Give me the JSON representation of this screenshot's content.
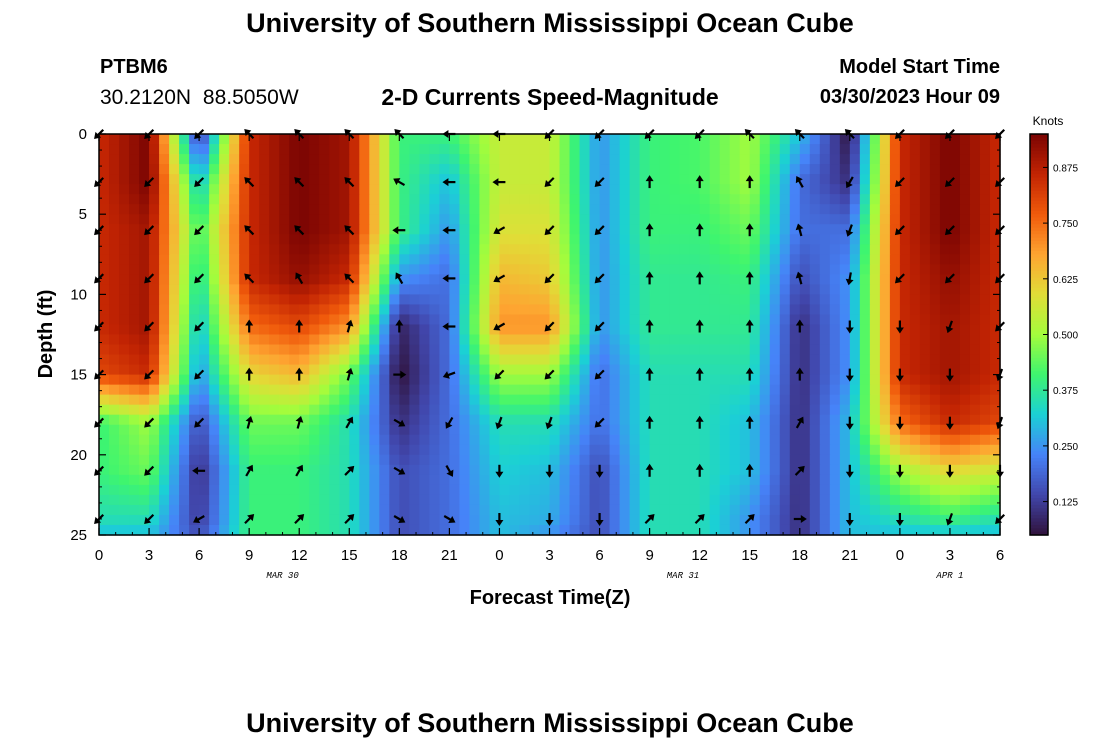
{
  "header": {
    "title": "University of Southern Mississippi Ocean Cube",
    "station_id": "PTBM6",
    "station_location": "30.2120N  88.5050W",
    "variable_title": "2-D Currents Speed-Magnitude",
    "model_start_label": "Model Start Time",
    "model_start_value": "03/30/2023 Hour 09",
    "footer_title": "University of Southern Mississippi Ocean Cube"
  },
  "chart_data": {
    "type": "heatmap",
    "title": "2-D Currents Speed-Magnitude",
    "xlabel": "Forecast Time(Z)",
    "ylabel": "Depth (ft)",
    "xlim": [
      0,
      54
    ],
    "ylim": [
      0,
      25
    ],
    "y_inverted": true,
    "x_ticks": [
      {
        "t": 0,
        "label": "0"
      },
      {
        "t": 3,
        "label": "3"
      },
      {
        "t": 6,
        "label": "6"
      },
      {
        "t": 9,
        "label": "9"
      },
      {
        "t": 12,
        "label": "12"
      },
      {
        "t": 15,
        "label": "15"
      },
      {
        "t": 18,
        "label": "18"
      },
      {
        "t": 21,
        "label": "21"
      },
      {
        "t": 24,
        "label": "0"
      },
      {
        "t": 27,
        "label": "3"
      },
      {
        "t": 30,
        "label": "6"
      },
      {
        "t": 33,
        "label": "9"
      },
      {
        "t": 36,
        "label": "12"
      },
      {
        "t": 39,
        "label": "15"
      },
      {
        "t": 42,
        "label": "18"
      },
      {
        "t": 45,
        "label": "21"
      },
      {
        "t": 48,
        "label": "0"
      },
      {
        "t": 51,
        "label": "3"
      },
      {
        "t": 54,
        "label": "6"
      }
    ],
    "y_ticks": [
      0,
      5,
      10,
      15,
      20,
      25
    ],
    "date_labels": [
      {
        "t": 11,
        "label": "MAR 30"
      },
      {
        "t": 35,
        "label": "MAR 31"
      },
      {
        "t": 51,
        "label": "APR 1"
      }
    ],
    "colorbar": {
      "label": "Knots",
      "min": 0.05,
      "max": 0.95,
      "ticks": [
        {
          "v": 0.125,
          "label": "0.125"
        },
        {
          "v": 0.25,
          "label": "0.250"
        },
        {
          "v": 0.375,
          "label": "0.375"
        },
        {
          "v": 0.5,
          "label": "0.500"
        },
        {
          "v": 0.625,
          "label": "0.625"
        },
        {
          "v": 0.75,
          "label": "0.750"
        },
        {
          "v": 0.875,
          "label": "0.875"
        }
      ]
    },
    "grid": {
      "times": [
        0,
        3,
        6,
        9,
        12,
        15,
        18,
        21,
        24,
        27,
        30,
        33,
        36,
        39,
        42,
        45,
        48,
        51,
        54
      ],
      "depths": [
        0,
        3,
        6,
        9,
        12,
        15,
        18,
        21,
        24,
        25
      ],
      "speed_knots": [
        [
          0.85,
          0.95,
          0.1,
          0.85,
          0.95,
          0.9,
          0.4,
          0.4,
          0.55,
          0.55,
          0.25,
          0.4,
          0.42,
          0.5,
          0.3,
          0.05,
          0.85,
          0.95,
          0.85
        ],
        [
          0.85,
          0.95,
          0.3,
          0.85,
          0.95,
          0.9,
          0.4,
          0.3,
          0.55,
          0.55,
          0.25,
          0.4,
          0.42,
          0.5,
          0.2,
          0.1,
          0.85,
          0.95,
          0.85
        ],
        [
          0.85,
          0.9,
          0.4,
          0.85,
          0.95,
          0.9,
          0.4,
          0.25,
          0.58,
          0.58,
          0.25,
          0.4,
          0.4,
          0.45,
          0.2,
          0.2,
          0.85,
          0.95,
          0.85
        ],
        [
          0.85,
          0.9,
          0.35,
          0.85,
          0.92,
          0.85,
          0.25,
          0.2,
          0.65,
          0.62,
          0.25,
          0.38,
          0.38,
          0.4,
          0.15,
          0.25,
          0.85,
          0.92,
          0.85
        ],
        [
          0.85,
          0.9,
          0.3,
          0.75,
          0.8,
          0.7,
          0.08,
          0.2,
          0.7,
          0.7,
          0.25,
          0.38,
          0.38,
          0.38,
          0.1,
          0.25,
          0.85,
          0.9,
          0.85
        ],
        [
          0.8,
          0.85,
          0.25,
          0.6,
          0.65,
          0.45,
          0.05,
          0.2,
          0.5,
          0.5,
          0.2,
          0.35,
          0.35,
          0.35,
          0.1,
          0.25,
          0.85,
          0.9,
          0.85
        ],
        [
          0.4,
          0.5,
          0.15,
          0.45,
          0.45,
          0.35,
          0.1,
          0.2,
          0.35,
          0.35,
          0.2,
          0.35,
          0.35,
          0.3,
          0.1,
          0.3,
          0.75,
          0.85,
          0.8
        ],
        [
          0.4,
          0.45,
          0.1,
          0.4,
          0.4,
          0.35,
          0.15,
          0.2,
          0.32,
          0.3,
          0.15,
          0.35,
          0.35,
          0.3,
          0.1,
          0.3,
          0.5,
          0.6,
          0.55
        ],
        [
          0.35,
          0.35,
          0.12,
          0.4,
          0.4,
          0.35,
          0.15,
          0.2,
          0.3,
          0.28,
          0.15,
          0.35,
          0.35,
          0.25,
          0.1,
          0.3,
          0.35,
          0.4,
          0.35
        ],
        [
          0.3,
          0.3,
          0.15,
          0.4,
          0.4,
          0.35,
          0.15,
          0.2,
          0.3,
          0.25,
          0.15,
          0.35,
          0.35,
          0.25,
          0.1,
          0.3,
          0.3,
          0.3,
          0.3
        ]
      ],
      "arrow_depths": [
        0,
        3,
        6,
        9,
        12,
        15,
        18,
        21,
        24
      ],
      "arrow_directions_deg": [
        [
          225,
          225,
          225,
          315,
          315,
          315,
          315,
          270,
          270,
          225,
          225,
          225,
          225,
          315,
          315,
          315,
          225,
          225,
          225
        ],
        [
          225,
          225,
          225,
          315,
          315,
          315,
          300,
          270,
          270,
          225,
          225,
          0,
          0,
          0,
          330,
          210,
          225,
          225,
          225
        ],
        [
          225,
          225,
          225,
          315,
          315,
          315,
          270,
          270,
          240,
          225,
          225,
          0,
          0,
          0,
          345,
          200,
          225,
          225,
          225
        ],
        [
          225,
          225,
          225,
          315,
          330,
          315,
          330,
          270,
          240,
          225,
          225,
          0,
          0,
          0,
          345,
          190,
          225,
          225,
          225
        ],
        [
          225,
          225,
          225,
          0,
          0,
          15,
          0,
          270,
          240,
          225,
          225,
          0,
          0,
          0,
          0,
          180,
          180,
          200,
          225
        ],
        [
          225,
          225,
          225,
          0,
          0,
          15,
          90,
          250,
          225,
          225,
          225,
          0,
          0,
          0,
          0,
          180,
          180,
          180,
          200
        ],
        [
          225,
          225,
          225,
          15,
          15,
          30,
          120,
          210,
          200,
          200,
          225,
          0,
          0,
          0,
          30,
          180,
          180,
          180,
          200
        ],
        [
          225,
          225,
          270,
          30,
          30,
          45,
          120,
          150,
          180,
          180,
          180,
          0,
          0,
          0,
          45,
          180,
          180,
          180,
          180
        ],
        [
          225,
          225,
          240,
          45,
          45,
          45,
          120,
          120,
          180,
          180,
          180,
          45,
          45,
          45,
          90,
          180,
          180,
          200,
          225
        ]
      ]
    }
  }
}
